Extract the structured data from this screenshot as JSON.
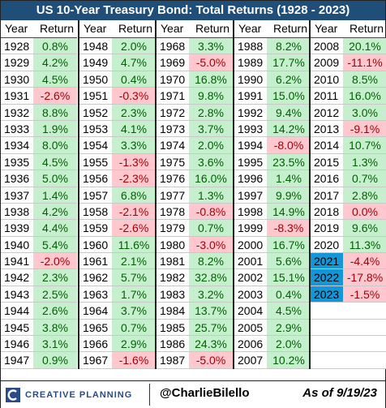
{
  "title": "US 10-Year Treasury Bond: Total Returns (1928 - 2023)",
  "header": {
    "year": "Year",
    "return": "Return"
  },
  "colors": {
    "positive_bg": "#c6efce",
    "positive_text": "#006100",
    "negative_bg": "#ffc7ce",
    "negative_text": "#9c0006",
    "title_bg": "#1f4e79",
    "recent_year_bg": "#1596d6"
  },
  "chart_data": {
    "type": "table",
    "title": "US 10-Year Treasury Bond: Total Returns (1928 - 2023)",
    "columns": [
      "Year",
      "Return"
    ],
    "rows": [
      [
        "1928",
        "0.8%"
      ],
      [
        "1929",
        "4.2%"
      ],
      [
        "1930",
        "4.5%"
      ],
      [
        "1931",
        "-2.6%"
      ],
      [
        "1932",
        "8.8%"
      ],
      [
        "1933",
        "1.9%"
      ],
      [
        "1934",
        "8.0%"
      ],
      [
        "1935",
        "4.5%"
      ],
      [
        "1936",
        "5.0%"
      ],
      [
        "1937",
        "1.4%"
      ],
      [
        "1938",
        "4.2%"
      ],
      [
        "1939",
        "4.4%"
      ],
      [
        "1940",
        "5.4%"
      ],
      [
        "1941",
        "-2.0%"
      ],
      [
        "1942",
        "2.3%"
      ],
      [
        "1943",
        "2.5%"
      ],
      [
        "1944",
        "2.6%"
      ],
      [
        "1945",
        "3.8%"
      ],
      [
        "1946",
        "3.1%"
      ],
      [
        "1947",
        "0.9%"
      ],
      [
        "1948",
        "2.0%"
      ],
      [
        "1949",
        "4.7%"
      ],
      [
        "1950",
        "0.4%"
      ],
      [
        "1951",
        "-0.3%"
      ],
      [
        "1952",
        "2.3%"
      ],
      [
        "1953",
        "4.1%"
      ],
      [
        "1954",
        "3.3%"
      ],
      [
        "1955",
        "-1.3%"
      ],
      [
        "1956",
        "-2.3%"
      ],
      [
        "1957",
        "6.8%"
      ],
      [
        "1958",
        "-2.1%"
      ],
      [
        "1959",
        "-2.6%"
      ],
      [
        "1960",
        "11.6%"
      ],
      [
        "1961",
        "2.1%"
      ],
      [
        "1962",
        "5.7%"
      ],
      [
        "1963",
        "1.7%"
      ],
      [
        "1964",
        "3.7%"
      ],
      [
        "1965",
        "0.7%"
      ],
      [
        "1966",
        "2.9%"
      ],
      [
        "1967",
        "-1.6%"
      ],
      [
        "1968",
        "3.3%"
      ],
      [
        "1969",
        "-5.0%"
      ],
      [
        "1970",
        "16.8%"
      ],
      [
        "1971",
        "9.8%"
      ],
      [
        "1972",
        "2.8%"
      ],
      [
        "1973",
        "3.7%"
      ],
      [
        "1974",
        "2.0%"
      ],
      [
        "1975",
        "3.6%"
      ],
      [
        "1976",
        "16.0%"
      ],
      [
        "1977",
        "1.3%"
      ],
      [
        "1978",
        "-0.8%"
      ],
      [
        "1979",
        "0.7%"
      ],
      [
        "1980",
        "-3.0%"
      ],
      [
        "1981",
        "8.2%"
      ],
      [
        "1982",
        "32.8%"
      ],
      [
        "1983",
        "3.2%"
      ],
      [
        "1984",
        "13.7%"
      ],
      [
        "1985",
        "25.7%"
      ],
      [
        "1986",
        "24.3%"
      ],
      [
        "1987",
        "-5.0%"
      ],
      [
        "1988",
        "8.2%"
      ],
      [
        "1989",
        "17.7%"
      ],
      [
        "1990",
        "6.2%"
      ],
      [
        "1991",
        "15.0%"
      ],
      [
        "1992",
        "9.4%"
      ],
      [
        "1993",
        "14.2%"
      ],
      [
        "1994",
        "-8.0%"
      ],
      [
        "1995",
        "23.5%"
      ],
      [
        "1996",
        "1.4%"
      ],
      [
        "1997",
        "9.9%"
      ],
      [
        "1998",
        "14.9%"
      ],
      [
        "1999",
        "-8.3%"
      ],
      [
        "2000",
        "16.7%"
      ],
      [
        "2001",
        "5.6%"
      ],
      [
        "2002",
        "15.1%"
      ],
      [
        "2003",
        "0.4%"
      ],
      [
        "2004",
        "4.5%"
      ],
      [
        "2005",
        "2.9%"
      ],
      [
        "2006",
        "2.0%"
      ],
      [
        "2007",
        "10.2%"
      ],
      [
        "2008",
        "20.1%"
      ],
      [
        "2009",
        "-11.1%"
      ],
      [
        "2010",
        "8.5%"
      ],
      [
        "2011",
        "16.0%"
      ],
      [
        "2012",
        "3.0%"
      ],
      [
        "2013",
        "-9.1%"
      ],
      [
        "2014",
        "10.7%"
      ],
      [
        "2015",
        "1.3%"
      ],
      [
        "2016",
        "0.7%"
      ],
      [
        "2017",
        "2.8%"
      ],
      [
        "2018",
        "0.0%"
      ],
      [
        "2019",
        "9.6%"
      ],
      [
        "2020",
        "11.3%"
      ],
      [
        "2021",
        "-4.4%"
      ],
      [
        "2022",
        "-17.8%"
      ],
      [
        "2023",
        "-1.5%"
      ]
    ]
  },
  "highlighted_years": [
    "2021",
    "2022",
    "2023"
  ],
  "footer": {
    "logo_text": "CREATIVE PLANNING",
    "handle": "@CharlieBilello",
    "as_of": "As of 9/19/23"
  }
}
